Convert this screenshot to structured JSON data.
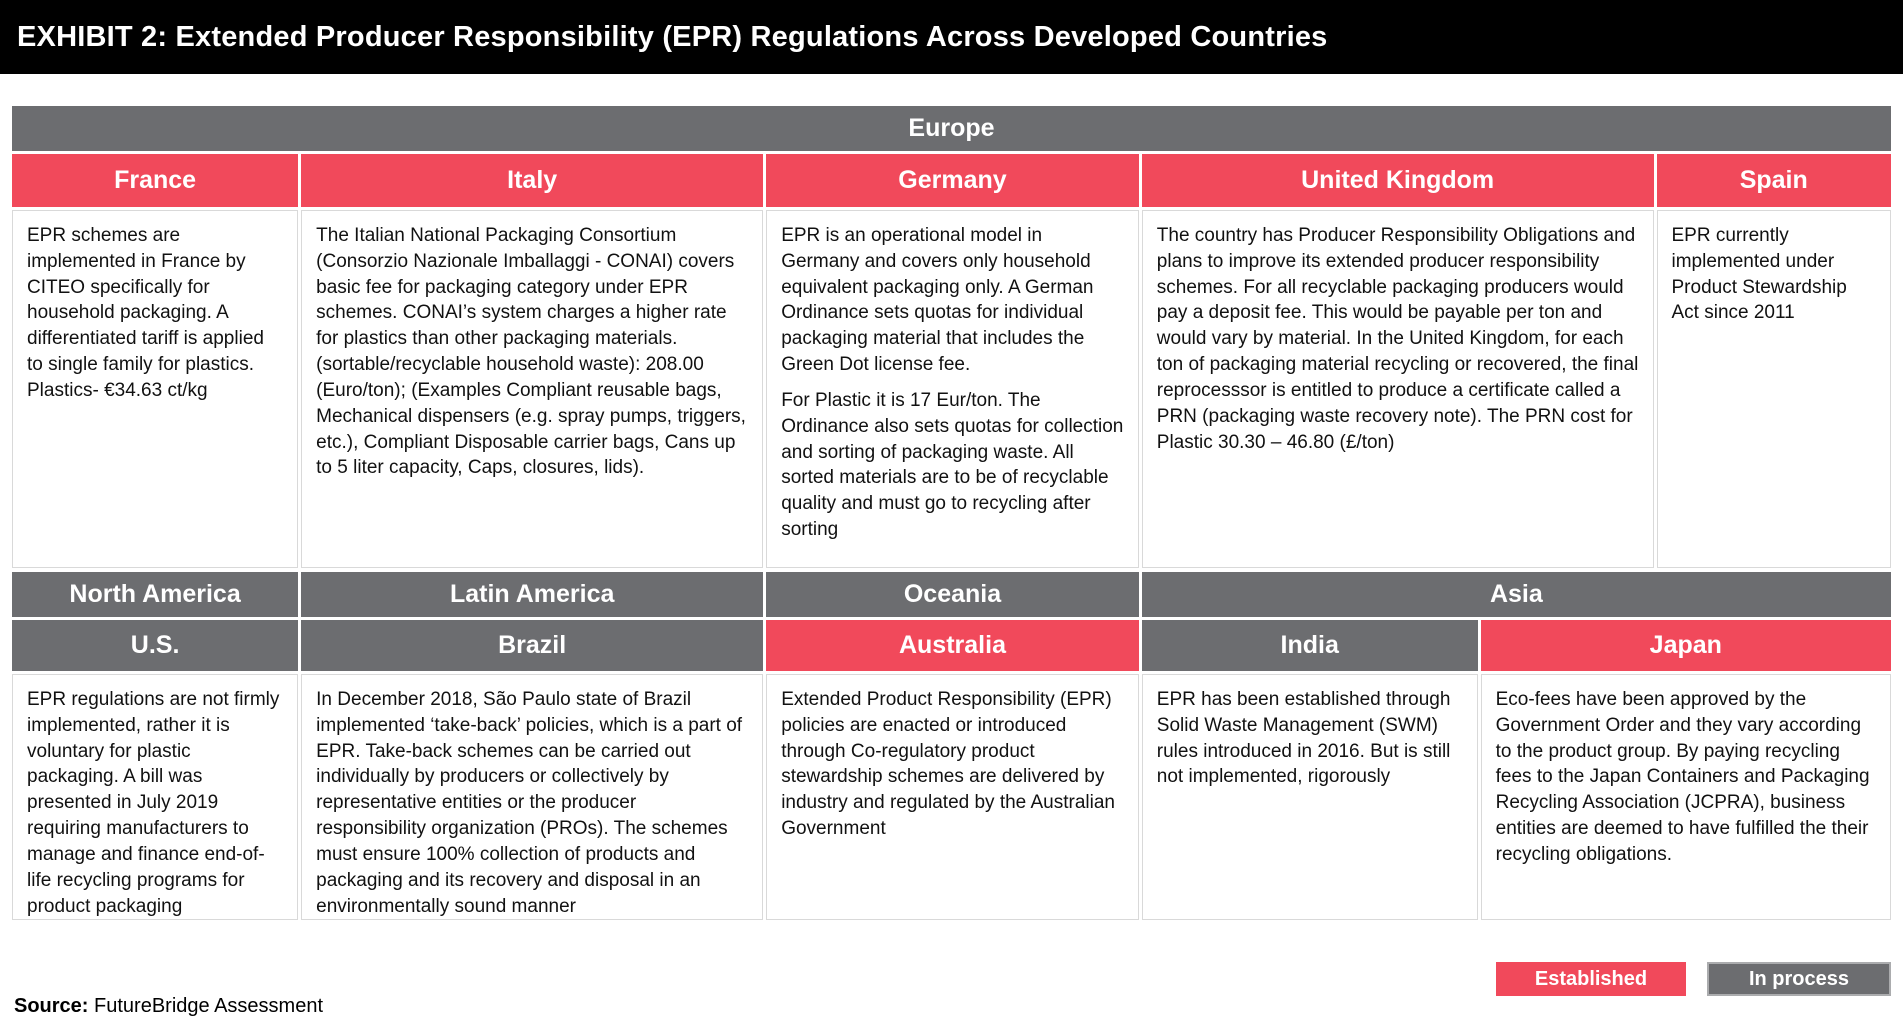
{
  "title": "EXHIBIT 2: Extended Producer Responsibility (EPR) Regulations Across Developed Countries",
  "colors": {
    "established": "#F1495B",
    "in_process": "#6C6D70",
    "title_bar": "#000000",
    "cell_border": "#D9D9D9"
  },
  "top": {
    "region": "Europe",
    "columns": [
      {
        "country": "France",
        "status": "Established",
        "text": "EPR schemes are implemented in France by CITEO specifically for household packaging. A differentiated tariff is applied to single family for plastics. Plastics- €34.63 ct/kg"
      },
      {
        "country": "Italy",
        "status": "Established",
        "text": "The Italian National Packaging Consortium (Consorzio Nazionale Imballaggi - CONAI) covers basic fee for packaging category under EPR schemes. CONAI’s system charges a higher rate for plastics than other packaging materials. (sortable/recyclable household waste): 208.00 (Euro/ton); (Examples Compliant reusable bags, Mechanical dispensers (e.g. spray pumps, triggers, etc.), Compliant Disposable carrier bags, Cans up to 5 liter capacity, Caps, closures, lids)."
      },
      {
        "country": "Germany",
        "status": "Established",
        "text": "EPR is an operational model in Germany and covers only household equivalent packaging only. A German Ordinance sets quotas for individual packaging material that includes the Green Dot license fee.",
        "text2": "For Plastic it is 17 Eur/ton. The Ordinance also sets quotas for collection and sorting of packaging waste. All sorted materials are to be of recyclable quality and must go to recycling after sorting"
      },
      {
        "country": "United Kingdom",
        "status": "Established",
        "text": "The country has Producer Responsibility Obligations and plans to improve its extended producer responsibility schemes. For all recyclable packaging producers would pay a deposit fee. This would be payable per ton and would vary by material. In the United Kingdom, for each ton of packaging material recycling or recovered, the final reprocesssor is entitled to produce a certificate called a PRN (packaging waste recovery note). The PRN cost for Plastic 30.30 – 46.80 (£/ton)"
      },
      {
        "country": "Spain",
        "status": "Established",
        "text": "EPR currently implemented under Product Stewardship Act since 2011"
      }
    ]
  },
  "bottom": {
    "regions": [
      {
        "label": "North America"
      },
      {
        "label": "Latin America"
      },
      {
        "label": "Oceania"
      },
      {
        "label": "Asia"
      }
    ],
    "columns": [
      {
        "country": "U.S.",
        "status": "In process",
        "text": "EPR regulations are not firmly implemented, rather it is voluntary for plastic packaging. A bill was presented in July 2019 requiring manufacturers to manage and finance end-of-life recycling programs for product packaging"
      },
      {
        "country": "Brazil",
        "status": "In process",
        "text": "In December 2018, São Paulo state of Brazil implemented ‘take-back’ policies, which is a part of EPR. Take-back schemes can be carried out individually by producers or collectively by representative entities or the producer responsibility organization (PROs). The schemes must ensure 100% collection of products and packaging and its recovery and disposal in an environmentally sound manner"
      },
      {
        "country": "Australia",
        "status": "Established",
        "text": "Extended Product Responsibility (EPR) policies are enacted or introduced through Co-regulatory product stewardship schemes are delivered by industry and regulated by the Australian Government"
      },
      {
        "country": "India",
        "status": "In process",
        "text": "EPR has been established through Solid Waste Management (SWM) rules introduced in 2016. But is still not implemented, rigorously"
      },
      {
        "country": "Japan",
        "status": "Established",
        "text": "Eco-fees have been approved by the Government Order and they vary according to the product group. By paying recycling fees to the Japan Containers and Packaging Recycling Association (JCPRA), business entities are deemed to have fulfilled the their recycling obligations."
      }
    ]
  },
  "legend": [
    {
      "label": "Established"
    },
    {
      "label": "In process"
    }
  ],
  "source": {
    "label": "Source:",
    "text": " FutureBridge Assessment"
  }
}
